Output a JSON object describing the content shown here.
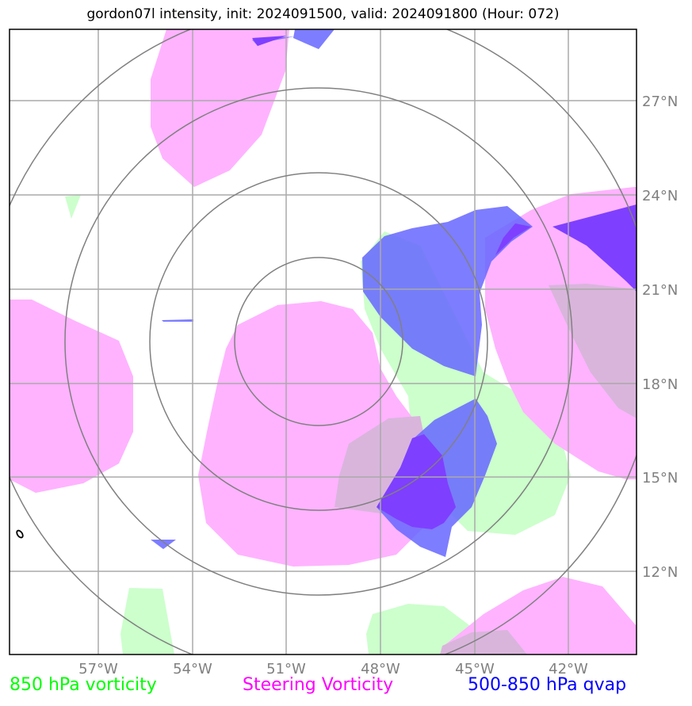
{
  "title": "gordon07l intensity, init: 2024091500, valid: 2024091800 (Hour: 072)",
  "legend": {
    "green": "850 hPa vorticity",
    "magenta": "Steering Vorticity",
    "blue": "500-850 hPa qvap"
  },
  "colors": {
    "green_fill": "#ccffcc",
    "magenta_fill": "#ffb3ff",
    "blue_fill": "#6666ff",
    "overlap_blue_magenta": "#7f3fff",
    "grid": "#aaaaaa",
    "range_rings": "#808080"
  },
  "chart_data": {
    "type": "map",
    "projection": "lat-lon with range rings centered on storm",
    "extent": {
      "lon": [
        -60,
        -40
      ],
      "lat": [
        9,
        29
      ]
    },
    "lat_ticks": [
      "27°N",
      "24°N",
      "21°N",
      "18°N",
      "15°N",
      "12°N"
    ],
    "lon_ticks": [
      "57°W",
      "54°W",
      "51°W",
      "48°W",
      "45°W",
      "42°W"
    ],
    "lat_values": [
      27,
      24,
      21,
      18,
      15,
      12
    ],
    "lon_values": [
      -57,
      -54,
      -51,
      -48,
      -45,
      -42
    ],
    "range_ring_center": {
      "lon": -50,
      "lat": 19.3
    },
    "range_ring_count": 4,
    "grid": true
  }
}
